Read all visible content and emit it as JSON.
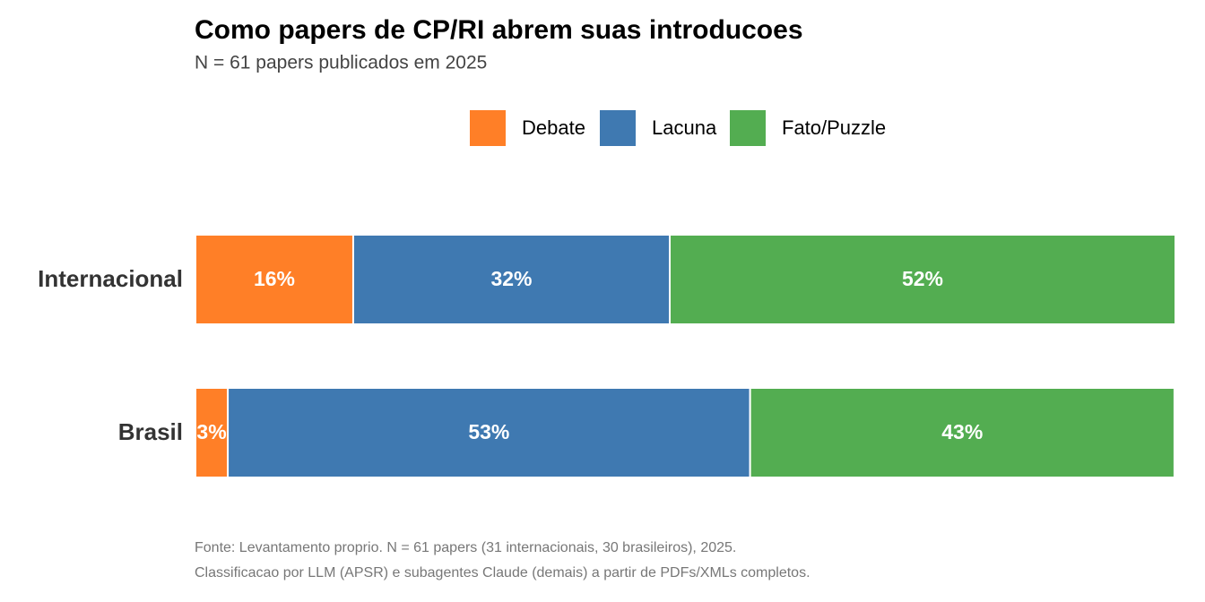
{
  "chart_data": {
    "type": "stacked-barh",
    "title": "Como papers de CP/RI abrem suas introducoes",
    "subtitle": "N = 61 papers publicados em 2025",
    "categories": [
      "Internacional",
      "Brasil"
    ],
    "series": [
      {
        "name": "Debate",
        "color": "#ff7f27",
        "values": [
          16.1,
          3.3
        ],
        "value_labels": [
          "16%",
          "3%"
        ]
      },
      {
        "name": "Lacuna",
        "color": "#3f79b1",
        "values": [
          32.3,
          53.3
        ],
        "value_labels": [
          "32%",
          "53%"
        ]
      },
      {
        "name": "Fato/Puzzle",
        "color": "#53ad51",
        "values": [
          51.6,
          43.3
        ],
        "value_labels": [
          "52%",
          "43%"
        ]
      }
    ],
    "xlim": [
      0,
      100
    ],
    "legend": "top",
    "caption": [
      "Fonte: Levantamento proprio. N = 61 papers (31 internacionais, 30 brasileiros), 2025.",
      "Classificacao por LLM (APSR) e subagentes Claude (demais) a partir de PDFs/XMLs completos."
    ]
  }
}
